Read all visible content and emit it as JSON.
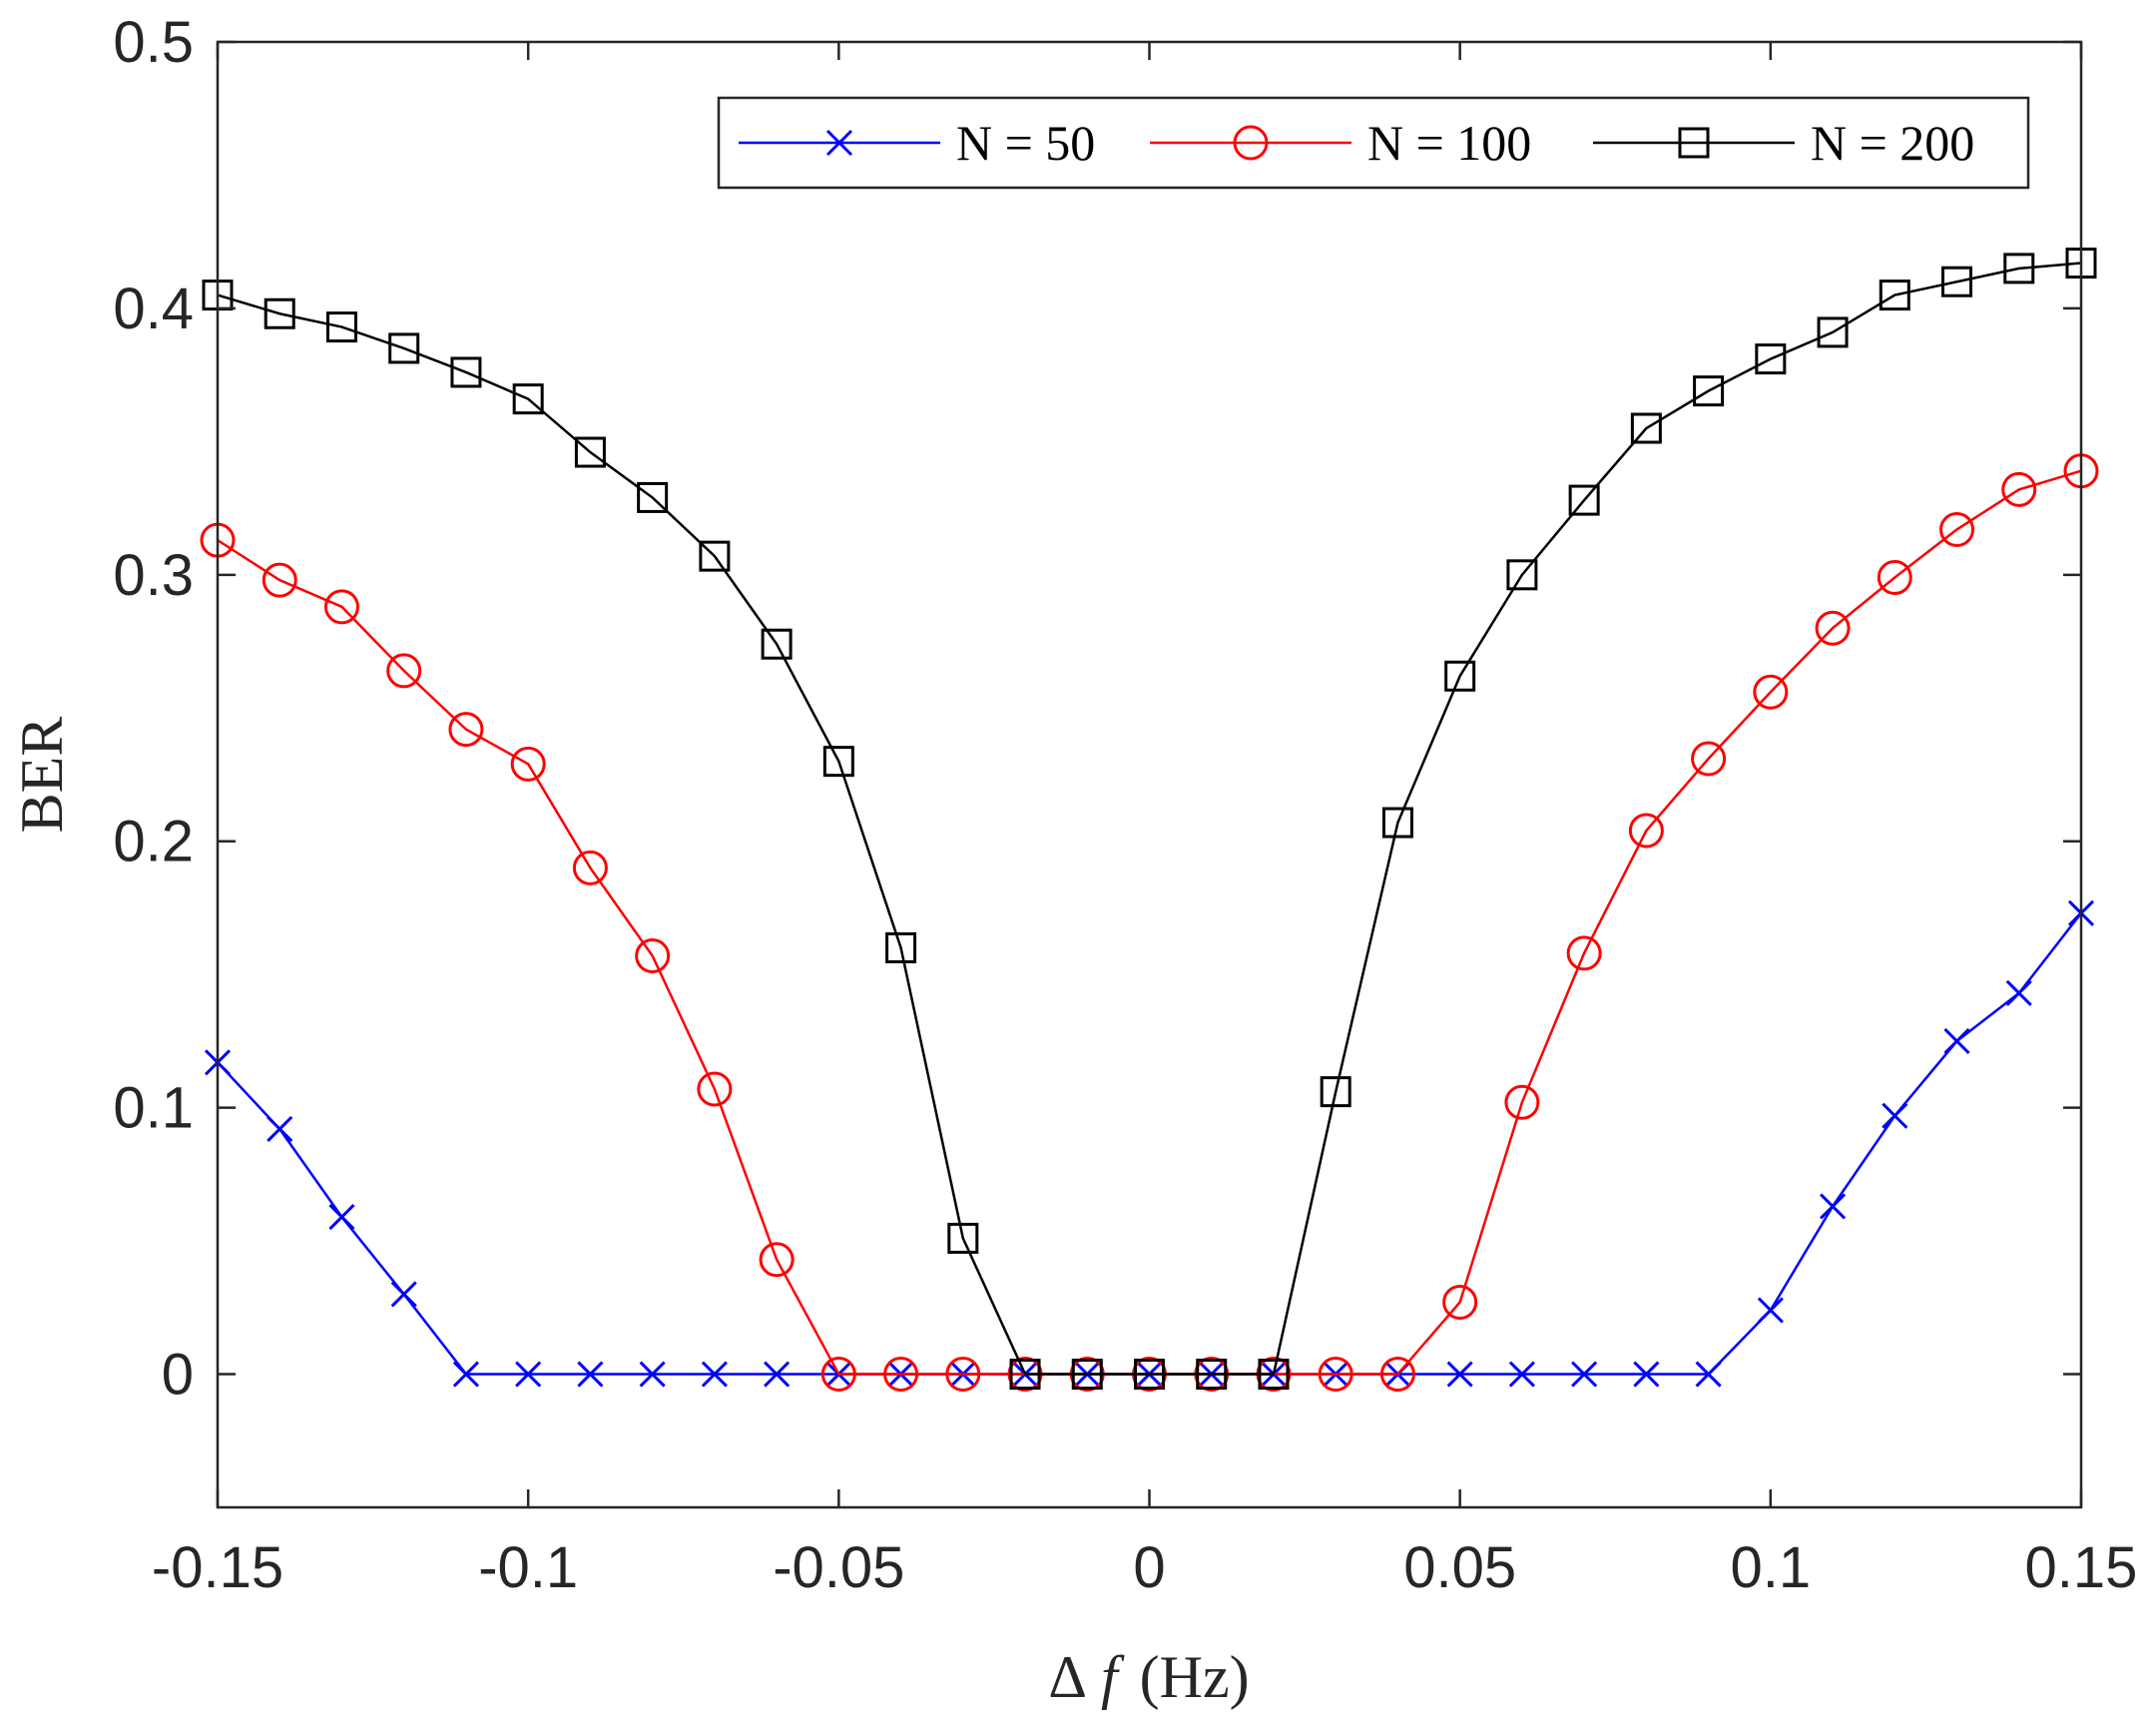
{
  "chart_data": {
    "type": "line",
    "title": "",
    "xlabel_symbol": "Δ",
    "xlabel_var": "f",
    "xlabel_unit": "(Hz)",
    "ylabel": "BER",
    "xlim": [
      -0.15,
      0.15
    ],
    "ylim": [
      -0.05,
      0.5
    ],
    "xticks": [
      -0.15,
      -0.1,
      -0.05,
      0,
      0.05,
      0.1,
      0.15
    ],
    "xtick_labels": [
      "-0.15",
      "-0.1",
      "-0.05",
      "0",
      "0.05",
      "0.1",
      "0.15"
    ],
    "yticks": [
      0,
      0.1,
      0.2,
      0.3,
      0.4,
      0.5
    ],
    "ytick_labels": [
      "0",
      "0.1",
      "0.2",
      "0.3",
      "0.4",
      "0.5"
    ],
    "grid": false,
    "legend_position": "top-right",
    "x": [
      -0.15,
      -0.14,
      -0.13,
      -0.12,
      -0.11,
      -0.1,
      -0.09,
      -0.08,
      -0.07,
      -0.06,
      -0.05,
      -0.04,
      -0.03,
      -0.02,
      -0.01,
      0,
      0.01,
      0.02,
      0.03,
      0.04,
      0.05,
      0.06,
      0.07,
      0.08,
      0.09,
      0.1,
      0.11,
      0.12,
      0.13,
      0.14,
      0.15
    ],
    "series": [
      {
        "name": "N = 50",
        "color": "#0000ff",
        "marker": "x",
        "values": [
          0.117,
          0.092,
          0.059,
          0.03,
          0,
          0,
          0,
          0,
          0,
          0,
          0,
          0,
          0,
          0,
          0,
          0,
          0,
          0,
          0,
          0,
          0,
          0,
          0,
          0,
          0,
          0.024,
          0.063,
          0.097,
          0.125,
          0.143,
          0.173
        ]
      },
      {
        "name": "N = 100",
        "color": "#ff0000",
        "marker": "o",
        "values": [
          0.313,
          0.298,
          0.288,
          0.264,
          0.242,
          0.229,
          0.19,
          0.157,
          0.107,
          0.043,
          0,
          0,
          0,
          0,
          0,
          0,
          0,
          0,
          0,
          0,
          0.027,
          0.102,
          0.158,
          0.204,
          0.231,
          0.256,
          0.28,
          0.299,
          0.317,
          0.332,
          0.339
        ]
      },
      {
        "name": "N = 200",
        "color": "#000000",
        "marker": "s",
        "values": [
          0.405,
          0.398,
          0.393,
          0.385,
          0.376,
          0.366,
          0.346,
          0.329,
          0.307,
          0.274,
          0.23,
          0.16,
          0.051,
          0,
          0,
          0,
          0,
          0,
          0.106,
          0.207,
          0.262,
          0.3,
          0.328,
          0.355,
          0.369,
          0.381,
          0.391,
          0.405,
          0.41,
          0.415,
          0.417
        ]
      }
    ]
  }
}
